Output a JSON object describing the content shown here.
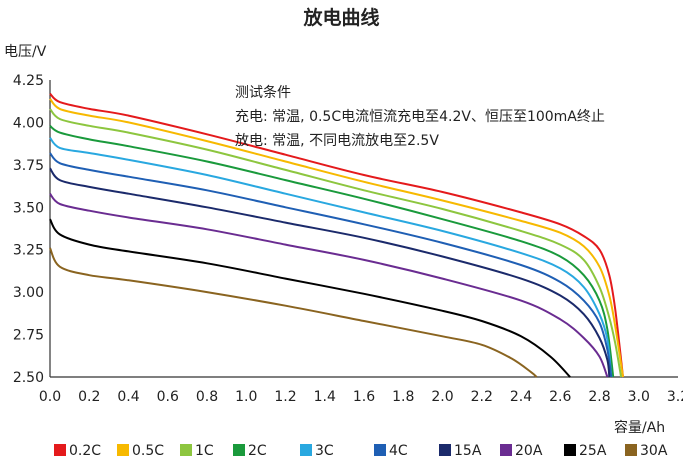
{
  "chart_data": {
    "type": "line",
    "title": "放电曲线",
    "ylabel": "电压/V",
    "xlabel": "容量/Ah",
    "xlim": [
      0,
      3.2
    ],
    "ylim": [
      2.5,
      4.25
    ],
    "x_ticks": [
      "0.0",
      "0.2",
      "0.4",
      "0.6",
      "0.8",
      "1.0",
      "1.2",
      "1.4",
      "1.6",
      "1.8",
      "2.0",
      "2.2",
      "2.4",
      "2.6",
      "2.8",
      "3.0",
      "3.2"
    ],
    "y_ticks": [
      "2.50",
      "2.75",
      "3.00",
      "3.25",
      "3.50",
      "3.75",
      "4.00",
      "4.25"
    ],
    "grid": false,
    "legend_position": "bottom",
    "annotations": [
      "测试条件",
      "充电: 常温, 0.5C电流恒流充电至4.2V、恒压至100mA终止",
      "放电: 常温, 不同电流放电至2.5V"
    ],
    "series": [
      {
        "name": "0.2C",
        "color": "#e41a1c",
        "points": [
          [
            0,
            4.17
          ],
          [
            0.05,
            4.12
          ],
          [
            0.2,
            4.08
          ],
          [
            0.4,
            4.04
          ],
          [
            0.8,
            3.93
          ],
          [
            1.2,
            3.81
          ],
          [
            1.6,
            3.69
          ],
          [
            2.0,
            3.59
          ],
          [
            2.4,
            3.47
          ],
          [
            2.6,
            3.4
          ],
          [
            2.72,
            3.33
          ],
          [
            2.8,
            3.25
          ],
          [
            2.85,
            3.1
          ],
          [
            2.88,
            2.9
          ],
          [
            2.92,
            2.5
          ]
        ]
      },
      {
        "name": "0.5C",
        "color": "#f7b900",
        "points": [
          [
            0,
            4.14
          ],
          [
            0.05,
            4.08
          ],
          [
            0.2,
            4.04
          ],
          [
            0.4,
            4.0
          ],
          [
            0.8,
            3.89
          ],
          [
            1.2,
            3.77
          ],
          [
            1.6,
            3.65
          ],
          [
            2.0,
            3.54
          ],
          [
            2.4,
            3.42
          ],
          [
            2.6,
            3.35
          ],
          [
            2.72,
            3.27
          ],
          [
            2.8,
            3.15
          ],
          [
            2.85,
            2.98
          ],
          [
            2.88,
            2.8
          ],
          [
            2.92,
            2.5
          ]
        ]
      },
      {
        "name": "1C",
        "color": "#8dc63f",
        "points": [
          [
            0,
            4.08
          ],
          [
            0.05,
            4.02
          ],
          [
            0.2,
            3.98
          ],
          [
            0.4,
            3.94
          ],
          [
            0.8,
            3.84
          ],
          [
            1.2,
            3.72
          ],
          [
            1.6,
            3.6
          ],
          [
            2.0,
            3.49
          ],
          [
            2.4,
            3.36
          ],
          [
            2.6,
            3.28
          ],
          [
            2.72,
            3.19
          ],
          [
            2.8,
            3.03
          ],
          [
            2.85,
            2.85
          ],
          [
            2.88,
            2.7
          ],
          [
            2.91,
            2.5
          ]
        ]
      },
      {
        "name": "2C",
        "color": "#1a9a3c",
        "points": [
          [
            0,
            3.98
          ],
          [
            0.05,
            3.94
          ],
          [
            0.2,
            3.9
          ],
          [
            0.4,
            3.86
          ],
          [
            0.8,
            3.77
          ],
          [
            1.2,
            3.66
          ],
          [
            1.6,
            3.55
          ],
          [
            2.0,
            3.43
          ],
          [
            2.4,
            3.3
          ],
          [
            2.6,
            3.21
          ],
          [
            2.72,
            3.1
          ],
          [
            2.8,
            2.95
          ],
          [
            2.84,
            2.78
          ],
          [
            2.87,
            2.5
          ]
        ]
      },
      {
        "name": "3C",
        "color": "#29a8e0",
        "points": [
          [
            0,
            3.91
          ],
          [
            0.05,
            3.85
          ],
          [
            0.2,
            3.82
          ],
          [
            0.4,
            3.78
          ],
          [
            0.8,
            3.69
          ],
          [
            1.2,
            3.58
          ],
          [
            1.6,
            3.47
          ],
          [
            2.0,
            3.36
          ],
          [
            2.4,
            3.23
          ],
          [
            2.6,
            3.14
          ],
          [
            2.72,
            3.03
          ],
          [
            2.8,
            2.87
          ],
          [
            2.84,
            2.72
          ],
          [
            2.86,
            2.5
          ]
        ]
      },
      {
        "name": "4C",
        "color": "#1f5fb4",
        "points": [
          [
            0,
            3.82
          ],
          [
            0.05,
            3.76
          ],
          [
            0.2,
            3.72
          ],
          [
            0.4,
            3.68
          ],
          [
            0.8,
            3.6
          ],
          [
            1.2,
            3.5
          ],
          [
            1.6,
            3.4
          ],
          [
            2.0,
            3.29
          ],
          [
            2.4,
            3.16
          ],
          [
            2.6,
            3.06
          ],
          [
            2.72,
            2.95
          ],
          [
            2.8,
            2.82
          ],
          [
            2.84,
            2.66
          ],
          [
            2.86,
            2.5
          ]
        ]
      },
      {
        "name": "15A",
        "color": "#1b2a6b",
        "points": [
          [
            0,
            3.73
          ],
          [
            0.05,
            3.66
          ],
          [
            0.2,
            3.62
          ],
          [
            0.4,
            3.58
          ],
          [
            0.8,
            3.5
          ],
          [
            1.2,
            3.41
          ],
          [
            1.6,
            3.32
          ],
          [
            2.0,
            3.21
          ],
          [
            2.4,
            3.08
          ],
          [
            2.6,
            2.98
          ],
          [
            2.72,
            2.87
          ],
          [
            2.8,
            2.73
          ],
          [
            2.84,
            2.6
          ],
          [
            2.85,
            2.5
          ]
        ]
      },
      {
        "name": "20A",
        "color": "#6a2c91",
        "points": [
          [
            0,
            3.58
          ],
          [
            0.05,
            3.52
          ],
          [
            0.2,
            3.48
          ],
          [
            0.4,
            3.44
          ],
          [
            0.8,
            3.37
          ],
          [
            1.2,
            3.28
          ],
          [
            1.6,
            3.19
          ],
          [
            2.0,
            3.08
          ],
          [
            2.4,
            2.95
          ],
          [
            2.6,
            2.84
          ],
          [
            2.72,
            2.73
          ],
          [
            2.8,
            2.62
          ],
          [
            2.84,
            2.5
          ]
        ]
      },
      {
        "name": "25A",
        "color": "#000000",
        "points": [
          [
            0,
            3.43
          ],
          [
            0.05,
            3.34
          ],
          [
            0.2,
            3.28
          ],
          [
            0.4,
            3.24
          ],
          [
            0.8,
            3.17
          ],
          [
            1.2,
            3.08
          ],
          [
            1.6,
            2.99
          ],
          [
            2.0,
            2.89
          ],
          [
            2.2,
            2.83
          ],
          [
            2.4,
            2.74
          ],
          [
            2.55,
            2.62
          ],
          [
            2.65,
            2.5
          ]
        ]
      },
      {
        "name": "30A",
        "color": "#8a6420",
        "points": [
          [
            0,
            3.26
          ],
          [
            0.05,
            3.15
          ],
          [
            0.2,
            3.1
          ],
          [
            0.4,
            3.07
          ],
          [
            0.8,
            3.0
          ],
          [
            1.2,
            2.92
          ],
          [
            1.6,
            2.83
          ],
          [
            2.0,
            2.74
          ],
          [
            2.2,
            2.69
          ],
          [
            2.35,
            2.61
          ],
          [
            2.45,
            2.53
          ],
          [
            2.48,
            2.5
          ]
        ]
      }
    ]
  }
}
